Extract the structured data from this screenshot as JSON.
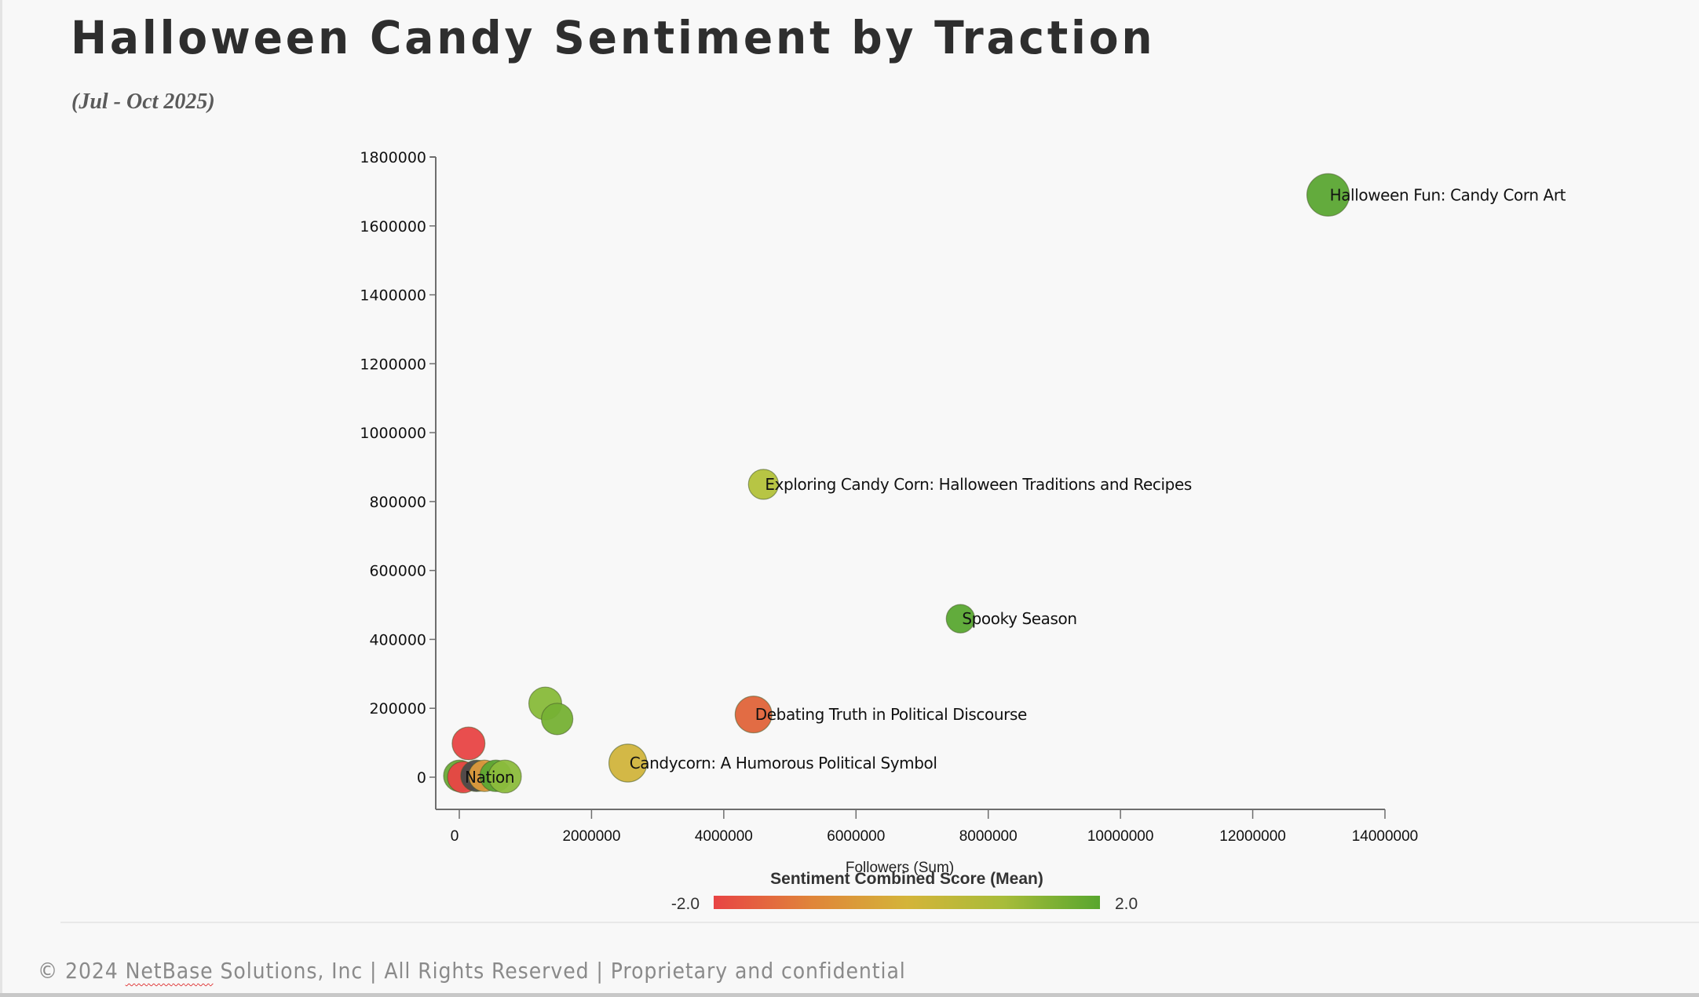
{
  "header": {
    "title": "Halloween Candy Sentiment by Traction",
    "subtitle": "(Jul - Oct 2025)"
  },
  "footer": {
    "prefix": "© 2024 ",
    "brand": "NetBase",
    "suffix": " Solutions, Inc | All Rights Reserved | Proprietary and confidential"
  },
  "chart_data": {
    "type": "scatter",
    "subtype": "bubble",
    "title": "Halloween Candy Sentiment by Traction",
    "subtitle": "(Jul - Oct 2025)",
    "xlabel": "Followers (Sum)",
    "ylabel": "",
    "xlim": [
      0,
      14000000
    ],
    "ylim": [
      0,
      1800000
    ],
    "x_ticks": [
      "0",
      "2000000",
      "4000000",
      "6000000",
      "8000000",
      "10000000",
      "12000000",
      "14000000"
    ],
    "y_ticks": [
      "0",
      "200000",
      "400000",
      "600000",
      "800000",
      "1000000",
      "1200000",
      "1400000",
      "1600000",
      "1800000"
    ],
    "grid": false,
    "color_legend": {
      "title": "Sentiment Combined Score (Mean)",
      "min_label": "-2.0",
      "max_label": "2.0",
      "min": -2.0,
      "max": 2.0,
      "colors": [
        "#e84444",
        "#e0843a",
        "#d4b43a",
        "#a8bc3a",
        "#58a62e"
      ],
      "placement": "bottom-center"
    },
    "points": [
      {
        "label": "Halloween Fun: Candy Corn Art",
        "x": 13140000,
        "y": 1690000,
        "size": 1.0,
        "sentiment": 1.9,
        "color": "#5ba633"
      },
      {
        "label": "Exploring Candy Corn: Halloween Traditions and Recipes",
        "x": 4600000,
        "y": 850000,
        "size": 0.5,
        "sentiment": 0.9,
        "color": "#b3c23a"
      },
      {
        "label": "Spooky Season",
        "x": 7580000,
        "y": 460000,
        "size": 0.45,
        "sentiment": 1.9,
        "color": "#5aa832"
      },
      {
        "label": "Debating Truth in Political Discourse",
        "x": 4450000,
        "y": 182000,
        "size": 0.75,
        "sentiment": -1.4,
        "color": "#e0643a"
      },
      {
        "label": "Candycorn: A Humorous Political Symbol",
        "x": 2550000,
        "y": 41000,
        "size": 0.8,
        "sentiment": 0.1,
        "color": "#d1b43c"
      },
      {
        "label": "",
        "x": 1300000,
        "y": 214000,
        "size": 0.6,
        "sentiment": 1.3,
        "color": "#88ba3a"
      },
      {
        "label": "",
        "x": 1480000,
        "y": 169000,
        "size": 0.55,
        "sentiment": 1.5,
        "color": "#76b134"
      },
      {
        "label": "",
        "x": 140000,
        "y": 98000,
        "size": 0.6,
        "sentiment": -1.9,
        "color": "#e84444"
      },
      {
        "label": "",
        "x": 0,
        "y": 4000,
        "size": 0.55,
        "sentiment": 1.6,
        "color": "#6aaa36"
      },
      {
        "label": "Nation",
        "x": 60000,
        "y": 0,
        "size": 0.55,
        "sentiment": -1.9,
        "color": "#e84444"
      },
      {
        "label": "",
        "x": 260000,
        "y": 4000,
        "size": 0.55,
        "sentiment": null,
        "color": "#4a4a4a"
      },
      {
        "label": "",
        "x": 380000,
        "y": 4000,
        "size": 0.55,
        "sentiment": -0.6,
        "color": "#dd9a3c"
      },
      {
        "label": "",
        "x": 550000,
        "y": 4000,
        "size": 0.55,
        "sentiment": 1.8,
        "color": "#5ba633"
      },
      {
        "label": "",
        "x": 690000,
        "y": 2000,
        "size": 0.6,
        "sentiment": 1.2,
        "color": "#8cbc3c"
      }
    ]
  }
}
